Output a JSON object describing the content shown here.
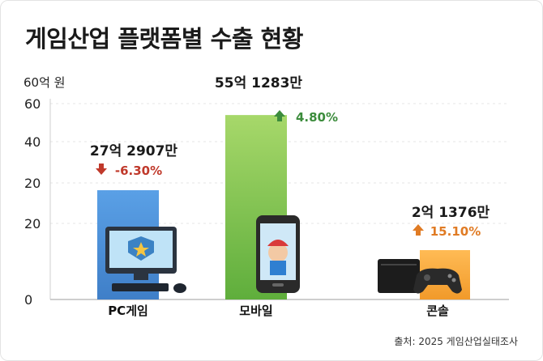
{
  "title": "게임산업 플랫폼별 수출 현황",
  "unit_label": "60억 원",
  "source": "출처: 2025 게임산업실태조사",
  "colors": {
    "pc": "#4a90d9",
    "mobile": "#7cc24a",
    "console": "#f4a340",
    "down": "#c0392b",
    "up_green": "#3c8c3c",
    "up_orange": "#e07b24"
  },
  "chart_data": {
    "type": "bar",
    "categories": [
      "PC게임",
      "모바일",
      "콘솔"
    ],
    "values": [
      27.29,
      55.13,
      2.14
    ],
    "value_labels": [
      "27억 2907만",
      "55억 1283만",
      "2억 1376만"
    ],
    "changes": [
      "-6.30%",
      "4.80%",
      "15.10%"
    ],
    "change_dir": [
      "down",
      "up",
      "up"
    ],
    "y_ticks": [
      "60",
      "40",
      "20",
      "20",
      "0"
    ],
    "icons": [
      "desktop-computer-icon",
      "smartphone-icon",
      "game-console-icon"
    ],
    "grid": true
  }
}
